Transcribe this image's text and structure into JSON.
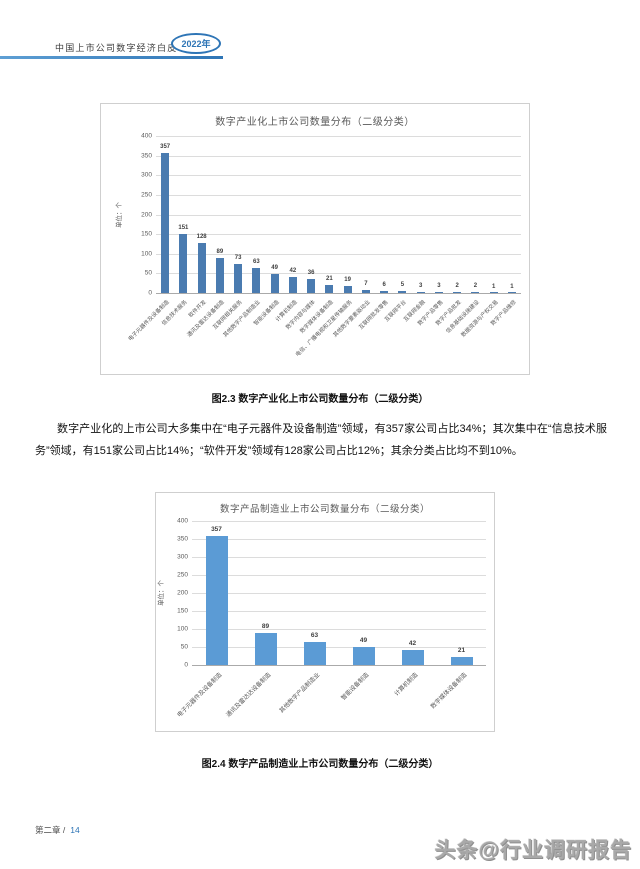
{
  "header": {
    "title": "中国上市公司数字经济白皮书",
    "year_badge": "2022年"
  },
  "figure1_caption": "图2.3 数字产业化上市公司数量分布（二级分类）",
  "paragraph": "数字产业化的上市公司大多集中在“电子元器件及设备制造”领域，有357家公司占比34%；其次集中在“信息技术服务”领域，有151家公司占比14%；“软件开发”领域有128家公司占比12%；其余分类占比均不到10%。",
  "figure2_caption": "图2.4 数字产品制造业上市公司数量分布（二级分类）",
  "footer": {
    "chapter_label": "第二章 /",
    "page_number": "14",
    "watermark": "头条@行业调研报告"
  },
  "chart_data": [
    {
      "type": "bar",
      "title": "数字产业化上市公司数量分布（二级分类）",
      "ylabel": "单位：个",
      "xlabel": "",
      "ylim": [
        0,
        400
      ],
      "yticks": [
        0,
        50,
        100,
        150,
        200,
        250,
        300,
        350,
        400
      ],
      "grid": true,
      "legend": "none",
      "bar_color": "#4a7bb0",
      "categories": [
        "电子元器件及设备制造",
        "信息技术服务",
        "软件开发",
        "通讯及雷达设备制造",
        "互联网相关服务",
        "其他数字产品制造业",
        "智能设备制造",
        "计算机制造",
        "数字内容与媒体",
        "数字媒体设备制造",
        "电信、广播电视和卫星传输服务",
        "其他数字要素驱动业",
        "互联网批发零售",
        "互联网平台",
        "互联网金融",
        "数字产品零售",
        "数字产品批发",
        "信息基础设施建设",
        "数据资源与产权交易",
        "数字产品维修"
      ],
      "values": [
        357,
        151,
        128,
        89,
        73,
        63,
        49,
        42,
        36,
        21,
        19,
        7,
        6,
        5,
        3,
        3,
        2,
        2,
        1,
        1
      ]
    },
    {
      "type": "bar",
      "title": "数字产品制造业上市公司数量分布（二级分类）",
      "ylabel": "单位：个",
      "xlabel": "",
      "ylim": [
        0,
        400
      ],
      "yticks": [
        0,
        50,
        100,
        150,
        200,
        250,
        300,
        350,
        400
      ],
      "grid": true,
      "legend": "none",
      "bar_color": "#5b9bd5",
      "categories": [
        "电子元器件及设备制造",
        "通讯及雷达达设备制造",
        "其他数字产品制造业",
        "智能设备制造",
        "计算机制造",
        "数字媒体设备制造"
      ],
      "values": [
        357,
        89,
        63,
        49,
        42,
        21
      ]
    }
  ]
}
